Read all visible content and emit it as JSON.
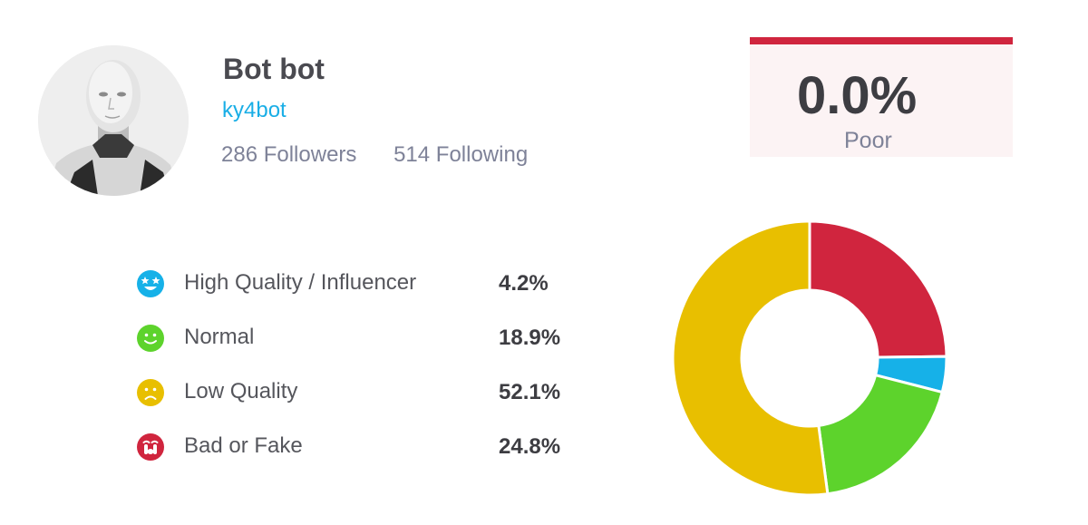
{
  "profile": {
    "name": "Bot bot",
    "handle": "ky4bot",
    "followers": "286 Followers",
    "following": "514 Following",
    "avatar_icon": "robot-avatar"
  },
  "score": {
    "value": "0.0%",
    "label": "Poor",
    "accent": "#d0253e"
  },
  "legend": [
    {
      "label": "High Quality / Influencer",
      "value": "4.2%",
      "icon": "star-eyes-face-icon",
      "color": "#16b1e8"
    },
    {
      "label": "Normal",
      "value": "18.9%",
      "icon": "smiley-face-icon",
      "color": "#5dd32c"
    },
    {
      "label": "Low Quality",
      "value": "52.1%",
      "icon": "frown-face-icon",
      "color": "#e8bf00"
    },
    {
      "label": "Bad or Fake",
      "value": "24.8%",
      "icon": "crying-face-icon",
      "color": "#d0253e"
    }
  ],
  "chart_data": {
    "type": "pie",
    "donut": true,
    "start": "12 o'clock",
    "direction": "clockwise",
    "categories": [
      "Bad or Fake",
      "High Quality / Influencer",
      "Normal",
      "Low Quality"
    ],
    "values": [
      24.8,
      4.2,
      18.9,
      52.1
    ],
    "colors": [
      "#d0253e",
      "#16b1e8",
      "#5dd32c",
      "#e8bf00"
    ]
  }
}
